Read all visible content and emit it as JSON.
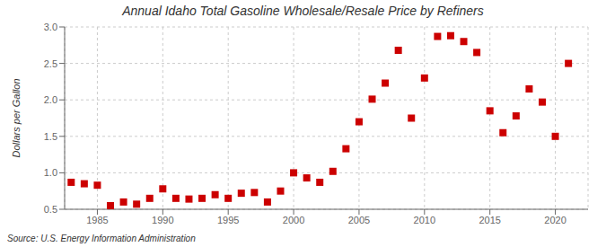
{
  "chart_data": {
    "type": "scatter",
    "title": "Annual Idaho Total Gasoline Wholesale/Resale Price by Refiners",
    "ylabel": "Dollars per Gallon",
    "annotations": [
      "Source: U.S. Energy Information Administration"
    ],
    "x": [
      1983,
      1984,
      1985,
      1986,
      1987,
      1988,
      1989,
      1990,
      1991,
      1992,
      1993,
      1994,
      1995,
      1996,
      1997,
      1998,
      1999,
      2000,
      2001,
      2002,
      2003,
      2004,
      2005,
      2006,
      2007,
      2008,
      2009,
      2010,
      2011,
      2012,
      2013,
      2014,
      2015,
      2016,
      2017,
      2018,
      2019,
      2020,
      2021
    ],
    "values": [
      0.87,
      0.85,
      0.83,
      0.55,
      0.6,
      0.57,
      0.65,
      0.78,
      0.65,
      0.64,
      0.65,
      0.7,
      0.65,
      0.72,
      0.73,
      0.6,
      0.75,
      1.0,
      0.93,
      0.87,
      1.02,
      1.33,
      1.7,
      2.01,
      2.23,
      2.68,
      1.75,
      2.3,
      2.87,
      2.88,
      2.8,
      2.65,
      1.85,
      1.55,
      1.78,
      2.15,
      1.97,
      1.5,
      2.5
    ],
    "color": "#cc0000",
    "marker": "square",
    "xlim": [
      1982.5,
      2022.5
    ],
    "ylim": [
      0.5,
      3.0
    ],
    "xticks": [
      1985,
      1990,
      1995,
      2000,
      2005,
      2010,
      2015,
      2020
    ],
    "yticks": [
      0.5,
      {
        "value": 1.0,
        "label": "1.0"
      },
      1.5,
      {
        "value": 2.0,
        "label": "2.0"
      },
      2.5,
      {
        "value": 3.0,
        "label": "3.0"
      }
    ],
    "grid": true
  }
}
